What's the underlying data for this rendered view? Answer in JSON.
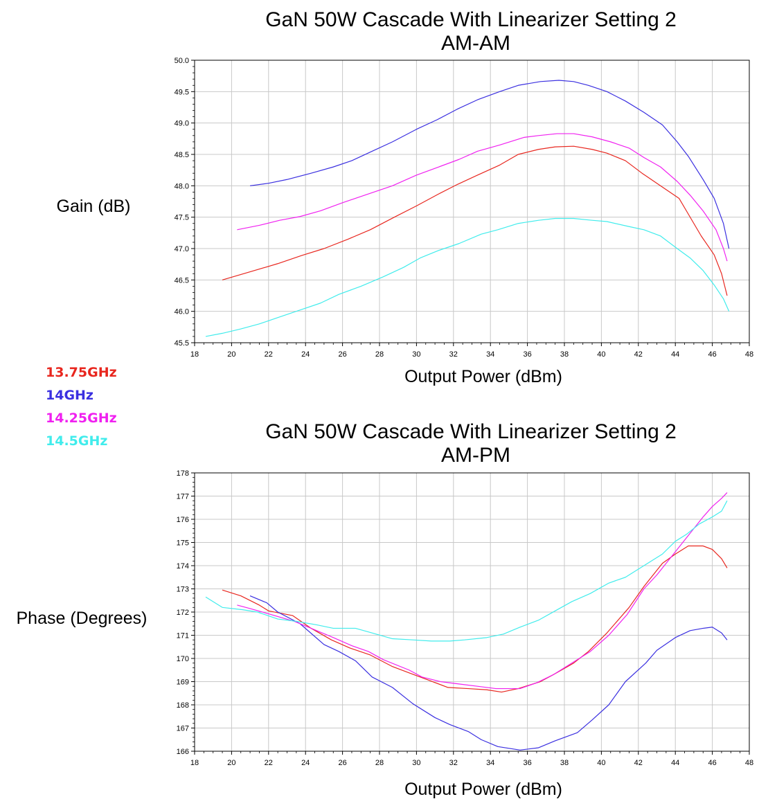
{
  "colors": {
    "13.75GHz": "#e8261e",
    "14GHz": "#3a2fe0",
    "14.25GHz": "#f020f0",
    "14.5GHz": "#40ecec",
    "grid": "#c8c8c8",
    "axis": "#000000"
  },
  "legend": {
    "items": [
      {
        "label": "13.75GHz",
        "color": "#e8261e"
      },
      {
        "label": "14GHz",
        "color": "#3a2fe0"
      },
      {
        "label": "14.25GHz",
        "color": "#f020f0"
      },
      {
        "label": "14.5GHz",
        "color": "#40ecec"
      }
    ]
  },
  "chart_data": [
    {
      "type": "line",
      "title": "GaN 50W Cascade With Linearizer Setting 2",
      "subtitle": "AM-AM",
      "xlabel": "Output Power (dBm)",
      "ylabel": "Gain (dB)",
      "xlim": [
        18,
        48
      ],
      "ylim": [
        45.5,
        50.0
      ],
      "xticks": [
        "18",
        "20",
        "22",
        "24",
        "26",
        "28",
        "30",
        "32",
        "34",
        "36",
        "38",
        "40",
        "42",
        "44",
        "46",
        "48"
      ],
      "yticks": [
        "45.5",
        "46.0",
        "46.5",
        "47.0",
        "47.5",
        "48.0",
        "48.5",
        "49.0",
        "49.5",
        "50.0"
      ],
      "grid": true,
      "series": [
        {
          "name": "13.75GHz",
          "color": "#e8261e",
          "points": [
            [
              19.5,
              46.5
            ],
            [
              21,
              46.63
            ],
            [
              22.5,
              46.76
            ],
            [
              23.8,
              46.89
            ],
            [
              25,
              47.0
            ],
            [
              26.3,
              47.15
            ],
            [
              27.5,
              47.3
            ],
            [
              28.8,
              47.5
            ],
            [
              30,
              47.68
            ],
            [
              31.2,
              47.87
            ],
            [
              32.2,
              48.02
            ],
            [
              33.3,
              48.17
            ],
            [
              34.5,
              48.33
            ],
            [
              35.5,
              48.5
            ],
            [
              36.6,
              48.58
            ],
            [
              37.5,
              48.62
            ],
            [
              38.5,
              48.63
            ],
            [
              39.5,
              48.58
            ],
            [
              40.3,
              48.52
            ],
            [
              41.3,
              48.4
            ],
            [
              42.2,
              48.2
            ],
            [
              43.2,
              48.0
            ],
            [
              44.2,
              47.8
            ],
            [
              44.7,
              47.55
            ],
            [
              45.4,
              47.2
            ],
            [
              46.1,
              46.9
            ],
            [
              46.5,
              46.6
            ],
            [
              46.8,
              46.25
            ]
          ]
        },
        {
          "name": "14GHz",
          "color": "#3a2fe0",
          "points": [
            [
              21,
              48.0
            ],
            [
              22,
              48.04
            ],
            [
              23,
              48.1
            ],
            [
              24.3,
              48.2
            ],
            [
              25.5,
              48.3
            ],
            [
              26.5,
              48.4
            ],
            [
              27.6,
              48.55
            ],
            [
              28.7,
              48.7
            ],
            [
              30,
              48.9
            ],
            [
              31.1,
              49.05
            ],
            [
              32.2,
              49.22
            ],
            [
              33.3,
              49.37
            ],
            [
              34.5,
              49.5
            ],
            [
              35.5,
              49.6
            ],
            [
              36.7,
              49.66
            ],
            [
              37.7,
              49.68
            ],
            [
              38.5,
              49.66
            ],
            [
              39.3,
              49.6
            ],
            [
              40.3,
              49.5
            ],
            [
              41.3,
              49.35
            ],
            [
              42.3,
              49.17
            ],
            [
              43.3,
              48.97
            ],
            [
              44.1,
              48.7
            ],
            [
              44.7,
              48.47
            ],
            [
              45.5,
              48.1
            ],
            [
              46.1,
              47.8
            ],
            [
              46.6,
              47.4
            ],
            [
              46.9,
              47.0
            ]
          ]
        },
        {
          "name": "14.25GHz",
          "color": "#f020f0",
          "points": [
            [
              20.3,
              47.3
            ],
            [
              21.5,
              47.37
            ],
            [
              22.6,
              47.45
            ],
            [
              23.7,
              47.51
            ],
            [
              24.8,
              47.6
            ],
            [
              26,
              47.73
            ],
            [
              27.5,
              47.88
            ],
            [
              28.7,
              48.0
            ],
            [
              30,
              48.17
            ],
            [
              31.2,
              48.3
            ],
            [
              32.3,
              48.42
            ],
            [
              33.3,
              48.55
            ],
            [
              34.5,
              48.65
            ],
            [
              35.8,
              48.77
            ],
            [
              36.6,
              48.8
            ],
            [
              37.6,
              48.83
            ],
            [
              38.5,
              48.83
            ],
            [
              39.5,
              48.78
            ],
            [
              40.5,
              48.7
            ],
            [
              41.5,
              48.6
            ],
            [
              42.3,
              48.45
            ],
            [
              43.2,
              48.3
            ],
            [
              44.1,
              48.07
            ],
            [
              44.8,
              47.85
            ],
            [
              45.5,
              47.6
            ],
            [
              46.2,
              47.3
            ],
            [
              46.6,
              47.0
            ],
            [
              46.8,
              46.8
            ]
          ]
        },
        {
          "name": "14.5GHz",
          "color": "#40ecec",
          "points": [
            [
              18.6,
              45.6
            ],
            [
              19.5,
              45.65
            ],
            [
              20.5,
              45.72
            ],
            [
              21.5,
              45.8
            ],
            [
              22.5,
              45.9
            ],
            [
              23.7,
              46.02
            ],
            [
              24.8,
              46.13
            ],
            [
              25.8,
              46.27
            ],
            [
              27,
              46.4
            ],
            [
              28.2,
              46.55
            ],
            [
              29.3,
              46.7
            ],
            [
              30.2,
              46.85
            ],
            [
              31.2,
              46.97
            ],
            [
              32.3,
              47.08
            ],
            [
              33.5,
              47.23
            ],
            [
              34.4,
              47.3
            ],
            [
              35.5,
              47.4
            ],
            [
              36.6,
              47.45
            ],
            [
              37.5,
              47.48
            ],
            [
              38.5,
              47.48
            ],
            [
              39.5,
              47.45
            ],
            [
              40.3,
              47.43
            ],
            [
              41.5,
              47.35
            ],
            [
              42.3,
              47.3
            ],
            [
              43.2,
              47.2
            ],
            [
              44.1,
              47.0
            ],
            [
              44.8,
              46.85
            ],
            [
              45.5,
              46.65
            ],
            [
              46.1,
              46.42
            ],
            [
              46.6,
              46.2
            ],
            [
              46.9,
              46.0
            ]
          ]
        }
      ]
    },
    {
      "type": "line",
      "title": "GaN 50W Cascade With Linearizer Setting 2",
      "subtitle": "AM-PM",
      "xlabel": "Output Power (dBm)",
      "ylabel": "Phase (Degrees)",
      "xlim": [
        18,
        48
      ],
      "ylim": [
        166,
        178
      ],
      "xticks": [
        "18",
        "20",
        "22",
        "24",
        "26",
        "28",
        "30",
        "32",
        "34",
        "36",
        "38",
        "40",
        "42",
        "44",
        "46",
        "48"
      ],
      "yticks": [
        "166",
        "167",
        "168",
        "169",
        "170",
        "171",
        "172",
        "173",
        "174",
        "175",
        "176",
        "177",
        "178"
      ],
      "grid": true,
      "series": [
        {
          "name": "13.75GHz",
          "color": "#e8261e",
          "points": [
            [
              19.5,
              172.95
            ],
            [
              20.5,
              172.7
            ],
            [
              21.5,
              172.3
            ],
            [
              22,
              172.05
            ],
            [
              23.3,
              171.85
            ],
            [
              24.3,
              171.3
            ],
            [
              25.4,
              170.8
            ],
            [
              26.4,
              170.45
            ],
            [
              27.5,
              170.15
            ],
            [
              28.7,
              169.65
            ],
            [
              29.7,
              169.35
            ],
            [
              30.7,
              169.05
            ],
            [
              31.7,
              168.75
            ],
            [
              32.8,
              168.7
            ],
            [
              33.8,
              168.65
            ],
            [
              34.6,
              168.55
            ],
            [
              35.5,
              168.7
            ],
            [
              36.7,
              169.0
            ],
            [
              37.4,
              169.3
            ],
            [
              38.5,
              169.8
            ],
            [
              39.3,
              170.3
            ],
            [
              40.3,
              171.1
            ],
            [
              41.5,
              172.2
            ],
            [
              42.3,
              173.1
            ],
            [
              43.3,
              174.1
            ],
            [
              44,
              174.5
            ],
            [
              44.7,
              174.85
            ],
            [
              45.5,
              174.85
            ],
            [
              46,
              174.7
            ],
            [
              46.5,
              174.3
            ],
            [
              46.8,
              173.9
            ]
          ]
        },
        {
          "name": "14GHz",
          "color": "#3a2fe0",
          "points": [
            [
              21,
              172.7
            ],
            [
              21.9,
              172.4
            ],
            [
              22.5,
              172.0
            ],
            [
              23.7,
              171.5
            ],
            [
              25,
              170.6
            ],
            [
              25.8,
              170.3
            ],
            [
              26.7,
              169.9
            ],
            [
              27.6,
              169.2
            ],
            [
              28.7,
              168.75
            ],
            [
              29.8,
              168.05
            ],
            [
              31,
              167.45
            ],
            [
              31.8,
              167.15
            ],
            [
              32.8,
              166.85
            ],
            [
              33.5,
              166.5
            ],
            [
              34.4,
              166.2
            ],
            [
              35.6,
              166.05
            ],
            [
              36.6,
              166.15
            ],
            [
              37.5,
              166.45
            ],
            [
              38.7,
              166.8
            ],
            [
              39.5,
              167.35
            ],
            [
              40.4,
              168.0
            ],
            [
              41.3,
              169.0
            ],
            [
              42.4,
              169.8
            ],
            [
              43,
              170.35
            ],
            [
              44,
              170.9
            ],
            [
              44.8,
              171.2
            ],
            [
              45.5,
              171.3
            ],
            [
              46,
              171.35
            ],
            [
              46.5,
              171.1
            ],
            [
              46.8,
              170.8
            ]
          ]
        },
        {
          "name": "14.25GHz",
          "color": "#f020f0",
          "points": [
            [
              20.3,
              172.3
            ],
            [
              21,
              172.15
            ],
            [
              22.1,
              171.9
            ],
            [
              23.4,
              171.6
            ],
            [
              24.3,
              171.3
            ],
            [
              25.5,
              170.9
            ],
            [
              26.5,
              170.55
            ],
            [
              27.4,
              170.3
            ],
            [
              28.2,
              169.95
            ],
            [
              29.6,
              169.5
            ],
            [
              30.3,
              169.2
            ],
            [
              31.3,
              169.0
            ],
            [
              32.3,
              168.9
            ],
            [
              33.3,
              168.8
            ],
            [
              34.3,
              168.7
            ],
            [
              35.6,
              168.7
            ],
            [
              36.5,
              168.95
            ],
            [
              37.4,
              169.3
            ],
            [
              38.3,
              169.75
            ],
            [
              39.4,
              170.3
            ],
            [
              40.4,
              171.0
            ],
            [
              41.4,
              171.9
            ],
            [
              42.3,
              173.0
            ],
            [
              43,
              173.6
            ],
            [
              43.8,
              174.4
            ],
            [
              44.4,
              175.0
            ],
            [
              45,
              175.6
            ],
            [
              45.5,
              176.1
            ],
            [
              46,
              176.55
            ],
            [
              46.5,
              176.9
            ],
            [
              46.8,
              177.15
            ]
          ]
        },
        {
          "name": "14.5GHz",
          "color": "#40ecec",
          "points": [
            [
              18.6,
              172.65
            ],
            [
              19.5,
              172.2
            ],
            [
              20.6,
              172.1
            ],
            [
              21.4,
              172.0
            ],
            [
              22.5,
              171.7
            ],
            [
              23.5,
              171.6
            ],
            [
              24.6,
              171.45
            ],
            [
              25.5,
              171.3
            ],
            [
              26.7,
              171.3
            ],
            [
              27.6,
              171.1
            ],
            [
              28.7,
              170.85
            ],
            [
              29.8,
              170.8
            ],
            [
              30.8,
              170.75
            ],
            [
              31.8,
              170.75
            ],
            [
              32.6,
              170.8
            ],
            [
              33.8,
              170.9
            ],
            [
              34.7,
              171.05
            ],
            [
              35.6,
              171.35
            ],
            [
              36.6,
              171.65
            ],
            [
              37.5,
              172.05
            ],
            [
              38.4,
              172.45
            ],
            [
              39.4,
              172.8
            ],
            [
              40.4,
              173.25
            ],
            [
              41.3,
              173.5
            ],
            [
              42.3,
              174.0
            ],
            [
              43.3,
              174.5
            ],
            [
              44,
              175.05
            ],
            [
              44.6,
              175.35
            ],
            [
              45.3,
              175.8
            ],
            [
              46,
              176.1
            ],
            [
              46.5,
              176.35
            ],
            [
              46.8,
              176.8
            ]
          ]
        }
      ]
    }
  ]
}
